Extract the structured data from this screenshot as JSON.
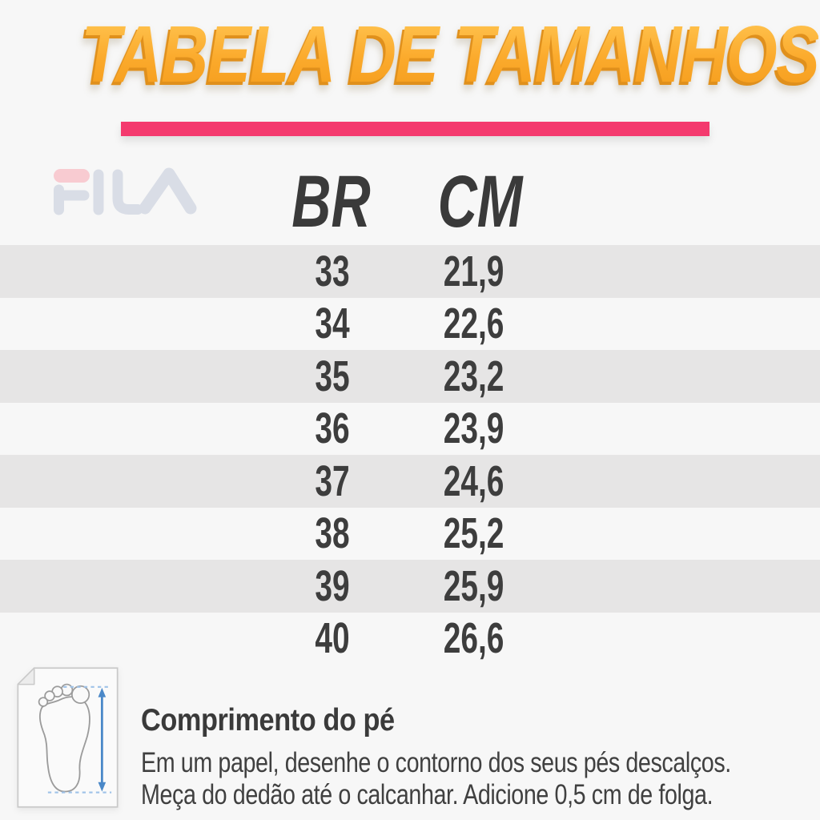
{
  "title": {
    "text": "TABELA DE TAMANHOS"
  },
  "brand": {
    "name": "FILA"
  },
  "colors": {
    "background": "#f7f7f7",
    "title_orange": "#f8a627",
    "title_shadow_orange": "#e0901c",
    "divider_pink": "#f43a6e",
    "row_stripe_gray": "#e6e5e5",
    "text_dark": "#3c3c3c",
    "fila_watermark_gray": "#d9dde6",
    "fila_watermark_pink": "#f8cbd1",
    "measure_arrow_blue": "#4a88c8"
  },
  "table": {
    "columns": [
      {
        "label": "BR"
      },
      {
        "label": "CM"
      }
    ],
    "rows": [
      {
        "br": "33",
        "cm": "21,9"
      },
      {
        "br": "34",
        "cm": "22,6"
      },
      {
        "br": "35",
        "cm": "23,2"
      },
      {
        "br": "36",
        "cm": "23,9"
      },
      {
        "br": "37",
        "cm": "24,6"
      },
      {
        "br": "38",
        "cm": "25,2"
      },
      {
        "br": "39",
        "cm": "25,9"
      },
      {
        "br": "40",
        "cm": "26,6"
      }
    ]
  },
  "footer": {
    "heading": "Comprimento do pé",
    "line1": "Em um papel, desenhe o contorno dos seus pés descalços.",
    "line2": "Meça do dedão até o calcanhar. Adicione 0,5 cm de folga.",
    "icon": "foot-measure-icon"
  },
  "chart_data": {
    "type": "table",
    "title": "TABELA DE TAMANHOS",
    "columns": [
      "BR",
      "CM"
    ],
    "rows": [
      [
        33,
        21.9
      ],
      [
        34,
        22.6
      ],
      [
        35,
        23.2
      ],
      [
        36,
        23.9
      ],
      [
        37,
        24.6
      ],
      [
        38,
        25.2
      ],
      [
        39,
        25.9
      ],
      [
        40,
        26.6
      ]
    ]
  }
}
